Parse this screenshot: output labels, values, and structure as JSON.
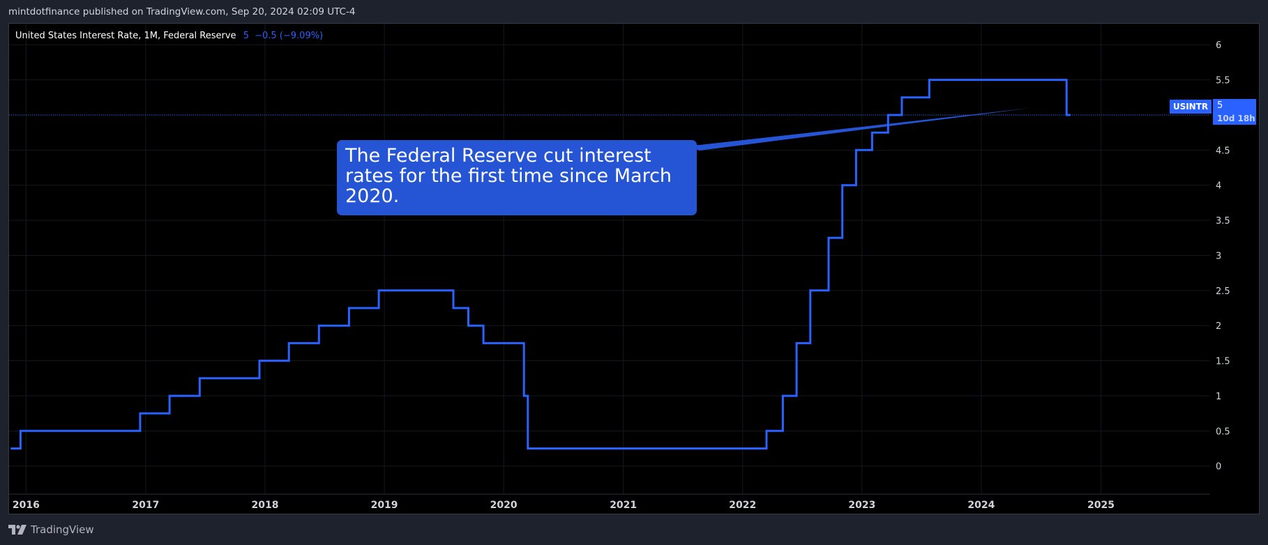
{
  "header": {
    "published": "mintdotfinance published on TradingView.com, Sep 20, 2024 02:09 UTC-4"
  },
  "legend": {
    "title": "United States Interest Rate, 1M, Federal Reserve",
    "value": "5",
    "change": "−0.5 (−9.09%)"
  },
  "annotation": {
    "text": "The Federal Reserve cut interest rates for the first time since March 2020."
  },
  "price_label": {
    "symbol": "USINTR",
    "price": "5",
    "countdown": "10d 18h"
  },
  "footer": {
    "brand": "TradingView",
    "logo_icon": "tradingview-logo-icon"
  },
  "colors": {
    "line": "#2962ff",
    "callout": "#2554d4",
    "background": "#000000",
    "frame": "#1e222d"
  },
  "chart_data": {
    "type": "line",
    "step": true,
    "series": [
      {
        "name": "USINTR",
        "points": [
          [
            "2015-11-15",
            0.25
          ],
          [
            "2015-12-15",
            0.5
          ],
          [
            "2016-12-15",
            0.75
          ],
          [
            "2017-03-15",
            1.0
          ],
          [
            "2017-06-15",
            1.25
          ],
          [
            "2017-12-15",
            1.5
          ],
          [
            "2018-03-15",
            1.75
          ],
          [
            "2018-06-15",
            2.0
          ],
          [
            "2018-09-15",
            2.25
          ],
          [
            "2018-12-15",
            2.5
          ],
          [
            "2019-07-31",
            2.25
          ],
          [
            "2019-09-15",
            2.0
          ],
          [
            "2019-10-31",
            1.75
          ],
          [
            "2020-03-03",
            1.0
          ],
          [
            "2020-03-15",
            0.25
          ],
          [
            "2022-03-15",
            0.5
          ],
          [
            "2022-05-04",
            1.0
          ],
          [
            "2022-06-15",
            1.75
          ],
          [
            "2022-07-27",
            2.5
          ],
          [
            "2022-09-21",
            3.25
          ],
          [
            "2022-11-02",
            4.0
          ],
          [
            "2022-12-14",
            4.5
          ],
          [
            "2023-02-01",
            4.75
          ],
          [
            "2023-03-22",
            5.0
          ],
          [
            "2023-05-03",
            5.25
          ],
          [
            "2023-07-26",
            5.5
          ],
          [
            "2024-09-18",
            5.0
          ],
          [
            "2024-09-30",
            5.0
          ]
        ]
      }
    ],
    "x_ticks": [
      "2016",
      "2017",
      "2018",
      "2019",
      "2020",
      "2021",
      "2022",
      "2023",
      "2024",
      "2025"
    ],
    "y_ticks": [
      "0",
      "0.5",
      "1",
      "1.5",
      "2",
      "2.5",
      "3",
      "3.5",
      "4",
      "4.5",
      "5",
      "5.5",
      "6"
    ],
    "xlim": [
      "2015-11-10",
      "2025-12-01"
    ],
    "ylim": [
      -0.4,
      6.3
    ],
    "last_value": 5,
    "grid": true,
    "y_axis_side": "right"
  }
}
